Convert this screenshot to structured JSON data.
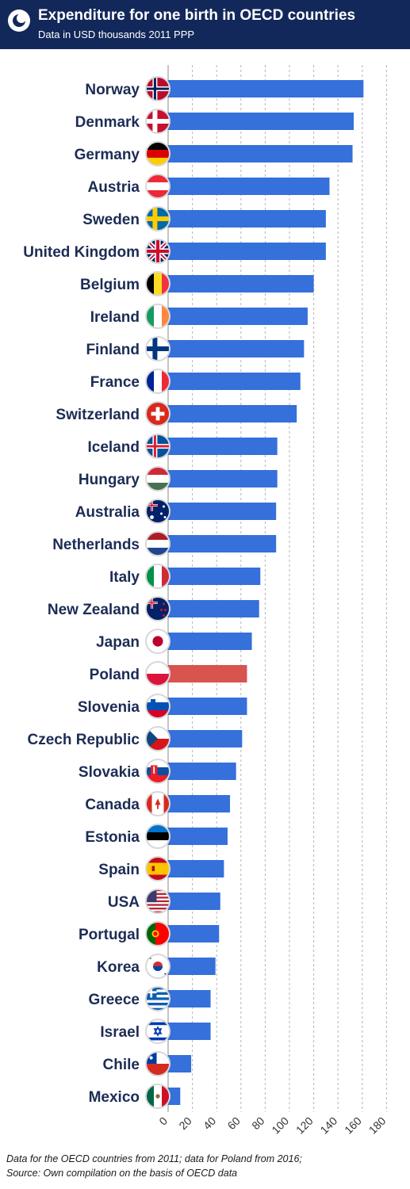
{
  "header": {
    "title": "Expenditure for one birth in OECD countries",
    "subtitle": "Data in USD thousands 2011 PPP",
    "background_color": "#13285a",
    "logo_icon": "circle-logo-icon"
  },
  "footer": {
    "line1": "Data for the OECD countries from 2011; data for Poland from 2016;",
    "line2": "Source: Own compilation on the basis of OECD data"
  },
  "chart_data": {
    "type": "bar",
    "orientation": "horizontal",
    "title": "Expenditure for one birth in OECD countries",
    "subtitle": "Data in USD thousands 2011 PPP",
    "xlim": [
      0,
      180
    ],
    "ticks": [
      0,
      20,
      40,
      60,
      80,
      100,
      120,
      140,
      160,
      180
    ],
    "grid": "vertical dashed",
    "bar_color": "#3570db",
    "highlight_color": "#d9534f",
    "highlight_category": "Poland",
    "categories": [
      "Norway",
      "Denmark",
      "Germany",
      "Austria",
      "Sweden",
      "United Kingdom",
      "Belgium",
      "Ireland",
      "Finland",
      "France",
      "Switzerland",
      "Iceland",
      "Hungary",
      "Australia",
      "Netherlands",
      "Italy",
      "New Zealand",
      "Japan",
      "Poland",
      "Slovenia",
      "Czech Republic",
      "Slovakia",
      "Canada",
      "Estonia",
      "Spain",
      "USA",
      "Portugal",
      "Korea",
      "Greece",
      "Israel",
      "Chile",
      "Mexico"
    ],
    "values": [
      161,
      153,
      152,
      133,
      130,
      130,
      120,
      115,
      112,
      109,
      106,
      90,
      90,
      89,
      89,
      76,
      75,
      69,
      65,
      65,
      61,
      56,
      51,
      49,
      46,
      43,
      42,
      39,
      35,
      35,
      19,
      10
    ],
    "flag_icons": [
      "norway-flag-icon",
      "denmark-flag-icon",
      "germany-flag-icon",
      "austria-flag-icon",
      "sweden-flag-icon",
      "united-kingdom-flag-icon",
      "belgium-flag-icon",
      "ireland-flag-icon",
      "finland-flag-icon",
      "france-flag-icon",
      "switzerland-flag-icon",
      "iceland-flag-icon",
      "hungary-flag-icon",
      "australia-flag-icon",
      "netherlands-flag-icon",
      "italy-flag-icon",
      "new-zealand-flag-icon",
      "japan-flag-icon",
      "poland-flag-icon",
      "slovenia-flag-icon",
      "czech-republic-flag-icon",
      "slovakia-flag-icon",
      "canada-flag-icon",
      "estonia-flag-icon",
      "spain-flag-icon",
      "usa-flag-icon",
      "portugal-flag-icon",
      "korea-flag-icon",
      "greece-flag-icon",
      "israel-flag-icon",
      "chile-flag-icon",
      "mexico-flag-icon"
    ]
  }
}
